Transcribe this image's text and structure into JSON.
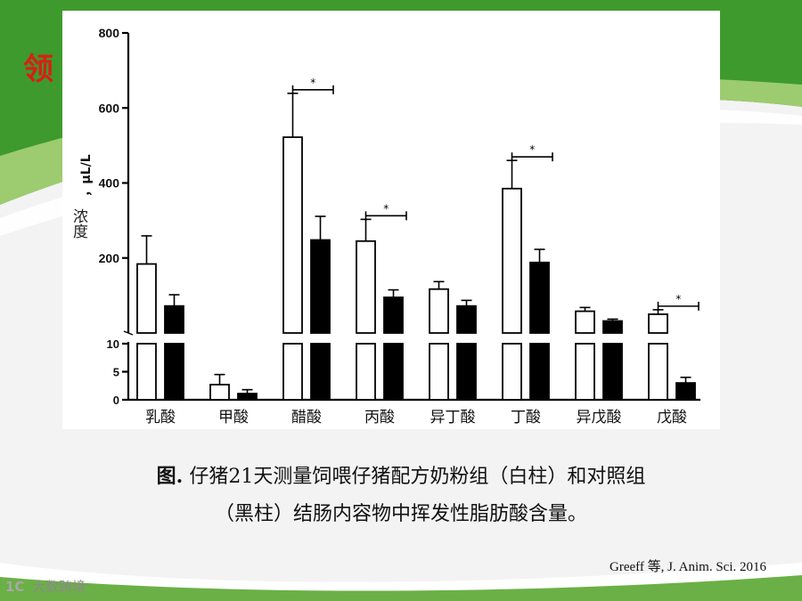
{
  "slide": {
    "title_visible": "领",
    "caption_bold": "图.",
    "caption_line1": "仔猪21天测量饲喂仔猪配方奶粉组（白柱）和对照组",
    "caption_line2": "（黑柱）结肠内容物中挥发性脂肪酸含量。",
    "citation": "Greeff 等, J. Anim. Sci. 2016",
    "watermark_logo": "1C",
    "watermark_text": "大数跨境",
    "colors": {
      "green_band": "#3e9a2c",
      "light_green": "#9ccc6f",
      "title_red": "#d62015"
    }
  },
  "chart_data": {
    "type": "bar",
    "ylabel_unit": "，μL/L",
    "ylabel_name": "浓度",
    "categories": [
      "乳酸",
      "甲酸",
      "醋酸",
      "丙酸",
      "异丁酸",
      "丁酸",
      "异戊酸",
      "戊酸"
    ],
    "series": [
      {
        "fill": "#ffffff",
        "values": [
          184,
          2.7,
          522,
          245,
          117,
          385,
          58,
          50
        ],
        "errors": [
          75,
          1.8,
          117,
          58,
          20,
          75,
          10,
          12
        ]
      },
      {
        "fill": "#000000",
        "values": [
          72,
          1.1,
          248,
          95,
          72,
          188,
          32,
          3
        ],
        "errors": [
          30,
          0.7,
          63,
          20,
          15,
          35,
          5,
          1
        ]
      }
    ],
    "significance": [
      "",
      "",
      "*",
      "*",
      "",
      "*",
      "",
      "*"
    ],
    "axis_upper": {
      "range": [
        0,
        800
      ],
      "ticks": [
        "200",
        "400",
        "600",
        "800"
      ]
    },
    "axis_lower": {
      "range": [
        0,
        10
      ],
      "ticks": [
        "0",
        "5",
        "10"
      ]
    },
    "axis_break": true
  }
}
